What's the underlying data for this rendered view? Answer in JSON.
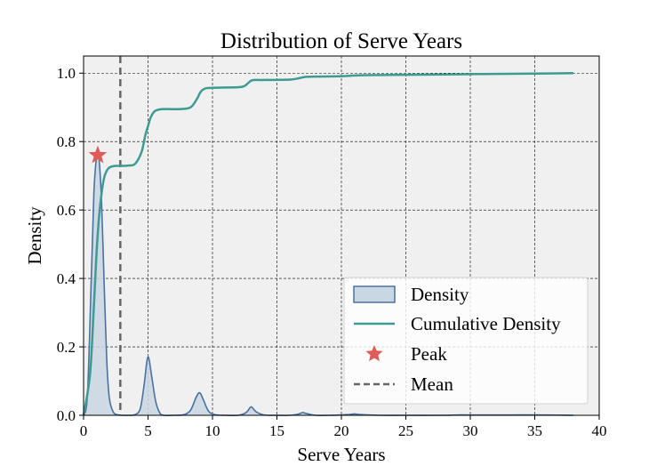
{
  "chart_data": {
    "type": "area",
    "title": "Distribution of Serve Years",
    "xlabel": "Serve Years",
    "ylabel": "Density",
    "xlim": [
      0,
      40
    ],
    "ylim": [
      0,
      1.05
    ],
    "xticks": [
      0,
      5,
      10,
      15,
      20,
      25,
      30,
      35,
      40
    ],
    "yticks": [
      0.0,
      0.2,
      0.4,
      0.6,
      0.8,
      1.0
    ],
    "xtick_labels": [
      "0",
      "5",
      "10",
      "15",
      "20",
      "25",
      "30",
      "35",
      "40"
    ],
    "ytick_labels": [
      "0.0",
      "0.2",
      "0.4",
      "0.6",
      "0.8",
      "1.0"
    ],
    "grid": true,
    "legend_position": "lower-right",
    "colors": {
      "density_fill": "#c9d6e3",
      "density_line": "#4a72a0",
      "cumulative": "#3f9a93",
      "peak": "#e05a5a",
      "mean": "#6b6467",
      "plot_background": "#f0f0f0"
    },
    "series": [
      {
        "name": "Density",
        "kind": "kde-area",
        "x": [
          0,
          0.3,
          0.6,
          0.8,
          1.0,
          1.1,
          1.2,
          1.4,
          1.6,
          1.8,
          2.0,
          2.3,
          2.6,
          3.0,
          3.5,
          4.0,
          4.4,
          4.7,
          4.9,
          5.0,
          5.1,
          5.3,
          5.6,
          5.9,
          6.2,
          7.0,
          7.8,
          8.3,
          8.7,
          8.9,
          9.0,
          9.1,
          9.3,
          9.7,
          10.2,
          11.0,
          12.0,
          12.6,
          12.9,
          13.0,
          13.1,
          13.4,
          14.0,
          15.0,
          16.0,
          16.7,
          17.0,
          17.3,
          18.0,
          19.0,
          20.5,
          21.0,
          21.5,
          23.0,
          25.0,
          28.0,
          29.0,
          30.0,
          33.0,
          36.0,
          38.0
        ],
        "y": [
          0.0,
          0.06,
          0.4,
          0.65,
          0.755,
          0.76,
          0.75,
          0.62,
          0.38,
          0.16,
          0.05,
          0.01,
          0.002,
          0.0,
          0.0,
          0.002,
          0.02,
          0.09,
          0.155,
          0.17,
          0.16,
          0.11,
          0.04,
          0.008,
          0.0,
          0.0,
          0.002,
          0.015,
          0.05,
          0.064,
          0.066,
          0.062,
          0.045,
          0.012,
          0.002,
          0.0,
          0.0,
          0.008,
          0.022,
          0.025,
          0.022,
          0.01,
          0.001,
          0.0,
          0.0,
          0.004,
          0.008,
          0.005,
          0.0,
          0.0,
          0.002,
          0.004,
          0.002,
          0.0,
          0.0,
          0.0,
          0.001,
          0.001,
          0.001,
          0.001,
          0.0
        ]
      },
      {
        "name": "Cumulative Density",
        "kind": "line",
        "x": [
          0,
          0.5,
          0.8,
          1.0,
          1.2,
          1.4,
          1.6,
          1.8,
          2.0,
          2.3,
          2.6,
          3.0,
          3.5,
          4.0,
          4.5,
          4.8,
          5.0,
          5.2,
          5.5,
          5.9,
          6.5,
          7.5,
          8.3,
          8.8,
          9.0,
          9.2,
          9.5,
          10.0,
          11.0,
          12.3,
          12.8,
          13.0,
          13.3,
          14.0,
          16.0,
          16.8,
          17.2,
          18.0,
          20.0,
          21.0,
          22.0,
          25.0,
          28.0,
          30.0,
          33.0,
          36.0,
          38.0
        ],
        "y": [
          0.0,
          0.12,
          0.32,
          0.47,
          0.58,
          0.65,
          0.695,
          0.715,
          0.724,
          0.728,
          0.729,
          0.729,
          0.73,
          0.735,
          0.77,
          0.82,
          0.845,
          0.87,
          0.888,
          0.894,
          0.895,
          0.895,
          0.9,
          0.925,
          0.94,
          0.95,
          0.956,
          0.957,
          0.958,
          0.96,
          0.972,
          0.978,
          0.98,
          0.98,
          0.981,
          0.986,
          0.989,
          0.99,
          0.991,
          0.993,
          0.994,
          0.995,
          0.996,
          0.997,
          0.998,
          0.999,
          1.0
        ]
      }
    ],
    "peak": {
      "name": "Peak",
      "x": 1.1,
      "y": 0.76
    },
    "mean": {
      "name": "Mean",
      "x": 2.85
    }
  }
}
